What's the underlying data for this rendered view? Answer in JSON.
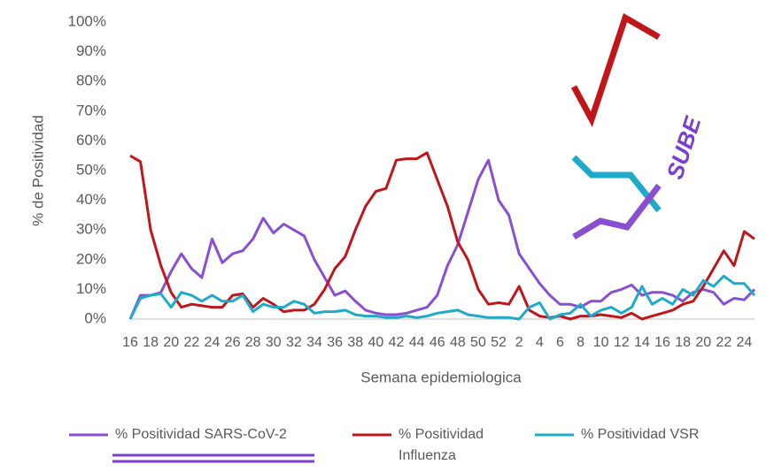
{
  "chart_data": {
    "type": "line",
    "ylabel": "% de Positividad",
    "xlabel": "Semana epidemiologica",
    "annotation": "SUBE",
    "categories": [
      "16",
      null,
      "18",
      null,
      "20",
      null,
      "22",
      null,
      "24",
      null,
      "26",
      null,
      "28",
      null,
      "30",
      null,
      "32",
      null,
      "34",
      null,
      "36",
      null,
      "38",
      null,
      "40",
      null,
      "42",
      null,
      "44",
      null,
      "46",
      null,
      "48",
      null,
      "50",
      null,
      "52",
      null,
      "2",
      null,
      "4",
      null,
      "6",
      null,
      "8",
      null,
      "10",
      null,
      "12",
      null,
      "14",
      null,
      "16",
      null,
      "18",
      null,
      "20",
      null,
      "22",
      null,
      "24",
      null
    ],
    "series": [
      {
        "name": "% Positividad SARS-CoV-2",
        "color": "#8a4fd0",
        "values": [
          0,
          8,
          8,
          9,
          16,
          22,
          17,
          14,
          27,
          19,
          22,
          23,
          27,
          34,
          29,
          32,
          30,
          28,
          20,
          14,
          8,
          9.5,
          6,
          3,
          2,
          1.5,
          1.5,
          2,
          3,
          4,
          8,
          18,
          25,
          36,
          47,
          53.5,
          40,
          35,
          22,
          17,
          12,
          8,
          5,
          5,
          4,
          6,
          6,
          9,
          10,
          11.5,
          8,
          9,
          9,
          8,
          6,
          9,
          10,
          9,
          5,
          7,
          6.5,
          10
        ]
      },
      {
        "name": "% Positividad Influenza",
        "color": "#c0161b",
        "values": [
          55,
          53,
          30,
          18,
          9,
          4,
          5,
          4.5,
          4,
          4,
          8,
          8.5,
          4,
          7,
          5,
          2.5,
          3,
          3,
          5,
          10,
          17,
          21,
          30,
          38,
          43,
          44,
          53.5,
          54,
          54,
          56,
          47,
          38,
          26,
          20,
          10,
          5,
          5.5,
          5,
          11,
          3,
          1,
          0.5,
          1,
          0,
          1,
          1,
          1.5,
          1,
          0.5,
          2,
          0,
          1,
          2,
          3,
          5,
          6,
          11,
          17,
          23,
          18,
          29.5,
          27
        ]
      },
      {
        "name": "% Positividad VSR",
        "color": "#1eaac8",
        "values": [
          0,
          7,
          8,
          8.5,
          4,
          9,
          8,
          6,
          8,
          6,
          6,
          8,
          2.5,
          5,
          4,
          4,
          6,
          5,
          2,
          2.5,
          2.5,
          3,
          1.5,
          1,
          1,
          0.5,
          0.5,
          1,
          0.5,
          1,
          2,
          2.5,
          3,
          1.5,
          1,
          0.5,
          0.5,
          0.5,
          0,
          4,
          5.5,
          0,
          1.5,
          2,
          5,
          1,
          3,
          4,
          2,
          4,
          11,
          5,
          7,
          5,
          10,
          8,
          13,
          11,
          14.5,
          12,
          12,
          8
        ]
      }
    ],
    "ylim": [
      0,
      100
    ],
    "yticks": [
      {
        "value": 0,
        "label": "0%"
      },
      {
        "value": 10,
        "label": "10%"
      },
      {
        "value": 20,
        "label": "20%"
      },
      {
        "value": 30,
        "label": "30%"
      },
      {
        "value": 40,
        "label": "40%"
      },
      {
        "value": 50,
        "label": "50%"
      },
      {
        "value": 60,
        "label": "60%"
      },
      {
        "value": 70,
        "label": "70%"
      },
      {
        "value": 80,
        "label": "80%"
      },
      {
        "value": 90,
        "label": "90%"
      },
      {
        "value": 100,
        "label": "100%"
      }
    ],
    "grid": false
  }
}
